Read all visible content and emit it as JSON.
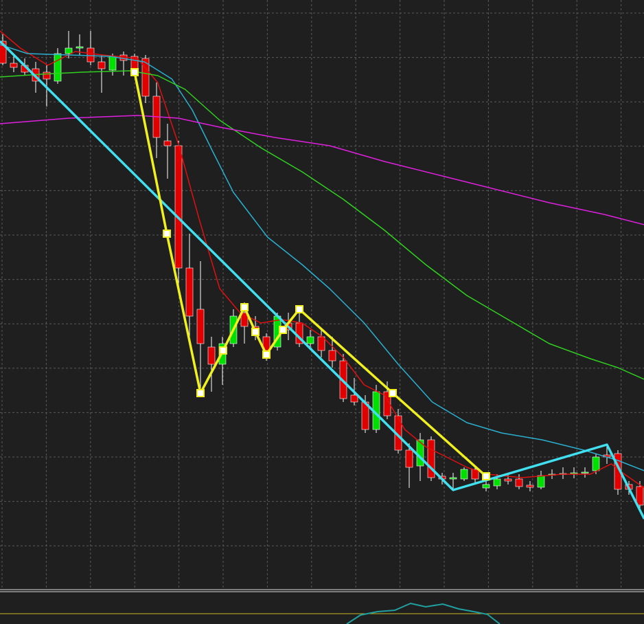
{
  "chart_data": {
    "type": "candlestick",
    "xlim": [
      -0.25,
      58.375
    ],
    "ylim": [
      0,
      860
    ],
    "grid": true,
    "up_color": "#00e000",
    "down_color": "#e00000",
    "open": [
      800,
      768,
      765,
      760,
      755,
      742,
      782,
      790,
      790,
      770,
      758,
      780,
      778,
      775,
      720,
      655,
      648,
      470,
      410,
      355,
      330,
      360,
      405,
      385,
      370,
      355,
      390,
      390,
      360,
      370,
      350,
      335,
      285,
      275,
      235,
      290,
      255,
      205,
      182,
      220,
      167,
      163,
      163,
      177,
      150,
      153,
      163,
      163,
      154,
      151,
      169,
      170,
      171,
      172,
      175,
      198,
      200,
      155,
      152
    ],
    "high": [
      810,
      780,
      775,
      770,
      765,
      790,
      815,
      810,
      815,
      780,
      782,
      785,
      782,
      780,
      740,
      680,
      655,
      520,
      480,
      370,
      370,
      410,
      420,
      400,
      375,
      405,
      405,
      405,
      380,
      380,
      370,
      345,
      310,
      285,
      300,
      305,
      265,
      215,
      230,
      225,
      172,
      172,
      180,
      182,
      160,
      170,
      170,
      170,
      160,
      175,
      177,
      180,
      180,
      180,
      200,
      210,
      205,
      160,
      160
    ],
    "low": [
      765,
      755,
      750,
      725,
      705,
      738,
      775,
      780,
      765,
      725,
      750,
      750,
      750,
      710,
      630,
      600,
      440,
      360,
      290,
      290,
      300,
      355,
      360,
      365,
      335,
      350,
      365,
      355,
      355,
      340,
      325,
      275,
      270,
      230,
      230,
      250,
      200,
      150,
      160,
      160,
      155,
      148,
      160,
      155,
      145,
      148,
      155,
      148,
      145,
      148,
      163,
      163,
      164,
      165,
      170,
      185,
      140,
      140,
      120
    ],
    "close": [
      768,
      762,
      755,
      742,
      745,
      782,
      790,
      792,
      770,
      760,
      778,
      772,
      755,
      720,
      660,
      648,
      470,
      400,
      360,
      330,
      360,
      400,
      385,
      375,
      350,
      400,
      380,
      360,
      370,
      350,
      335,
      280,
      275,
      235,
      290,
      255,
      205,
      180,
      220,
      165,
      163,
      165,
      177,
      163,
      155,
      163,
      160,
      152,
      151,
      168,
      170,
      171,
      172,
      173,
      195,
      195,
      148,
      148,
      125
    ],
    "lines": [
      {
        "color": "#e01010",
        "width": 1.5,
        "x": [
          -0.25,
          1.6,
          4.1,
          6.6,
          9.1,
          12.25,
          14.1,
          16,
          17.9,
          19.75,
          21.6,
          23.5,
          25.4,
          27.25,
          29.1,
          31,
          32.9,
          34.75,
          36.6,
          38.5,
          40.4,
          42.25,
          44.1,
          47.25,
          51,
          53.5,
          55.4,
          56.6,
          58.4
        ],
        "values": [
          815,
          790,
          765,
          785,
          780,
          775,
          740,
          650,
          540,
          440,
          405,
          390,
          395,
          390,
          370,
          340,
          300,
          285,
          235,
          210,
          195,
          180,
          170,
          165,
          170,
          170,
          185,
          170,
          150
        ]
      },
      {
        "color": "#2ab0d0",
        "width": 1.5,
        "x": [
          -0.25,
          2.25,
          6,
          9.75,
          12.9,
          15.4,
          17.25,
          19.1,
          21,
          24.1,
          27.25,
          29.75,
          32.9,
          36,
          39.1,
          42.25,
          45.4,
          49.1,
          52.9,
          56,
          58.4
        ],
        "values": [
          795,
          782,
          780,
          778,
          770,
          745,
          700,
          640,
          580,
          515,
          475,
          440,
          390,
          330,
          275,
          245,
          230,
          220,
          205,
          190,
          175
        ]
      },
      {
        "color": "#30d020",
        "width": 1.5,
        "x": [
          -0.25,
          3.5,
          7.25,
          11.6,
          14.1,
          16.6,
          19.75,
          23.5,
          27.25,
          31,
          34.75,
          38.5,
          42.25,
          46,
          49.75,
          53.5,
          56,
          58.4
        ],
        "values": [
          748,
          752,
          755,
          757,
          750,
          730,
          685,
          645,
          610,
          570,
          525,
          475,
          430,
          395,
          360,
          338,
          325,
          308
        ]
      },
      {
        "color": "#e020e0",
        "width": 1.5,
        "x": [
          -0.25,
          6,
          12.25,
          16,
          19.75,
          24.75,
          29.75,
          34.75,
          39.75,
          44.75,
          49.75,
          54.75,
          58.4
        ],
        "values": [
          680,
          688,
          692,
          688,
          675,
          660,
          648,
          625,
          605,
          585,
          565,
          548,
          533
        ]
      },
      {
        "color": "#40e0f0",
        "width": 3.5,
        "x": [
          -0.25,
          41,
          55,
          58.4
        ],
        "values": [
          800,
          147,
          213,
          105
        ]
      },
      {
        "color": "#f0f020",
        "width": 3.5,
        "markers": true,
        "x": [
          12,
          14.94,
          18,
          20.06,
          22,
          23,
          24,
          25.5,
          27,
          35.5,
          44
        ],
        "values": [
          755,
          520,
          288,
          350,
          413,
          377,
          344,
          380,
          410,
          288,
          167
        ]
      }
    ]
  }
}
